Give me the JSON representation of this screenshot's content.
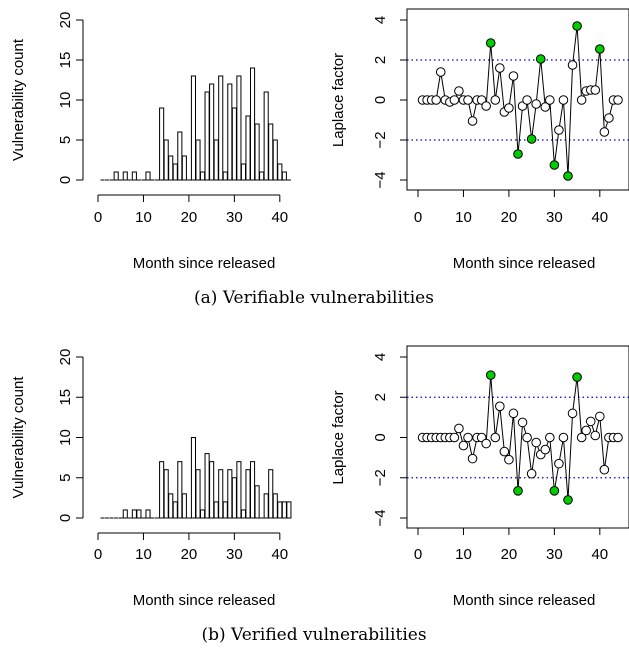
{
  "figure": {
    "caption_a": "(a) Verifiable vulnerabilities",
    "caption_b": "(b) Verified vulnerabilities"
  },
  "chart_data": [
    {
      "type": "bar",
      "xlabel": "Month since released",
      "ylabel": "Vulnerability count",
      "xlim": [
        0,
        44
      ],
      "ylim": [
        0,
        20
      ],
      "xticks": [
        0,
        10,
        20,
        30,
        40
      ],
      "yticks": [
        0,
        5,
        10,
        15,
        20
      ],
      "x": [
        1,
        2,
        3,
        4,
        5,
        6,
        7,
        8,
        9,
        10,
        11,
        12,
        13,
        14,
        15,
        16,
        17,
        18,
        19,
        20,
        21,
        22,
        23,
        24,
        25,
        26,
        27,
        28,
        29,
        30,
        31,
        32,
        33,
        34,
        35,
        36,
        37,
        38,
        39,
        40,
        41,
        42
      ],
      "values": [
        0,
        0,
        0,
        1,
        0,
        1,
        0,
        1,
        0,
        0,
        1,
        0,
        0,
        9,
        5,
        3,
        2,
        6,
        3,
        0,
        13,
        5,
        1,
        11,
        12,
        5,
        13,
        1,
        12,
        9,
        13,
        2,
        8,
        14,
        7,
        1,
        11,
        7,
        5,
        2,
        1,
        0
      ]
    },
    {
      "type": "line",
      "xlabel": "Month since released",
      "ylabel": "Laplace factor",
      "xlim": [
        0,
        44
      ],
      "ylim": [
        -4,
        4
      ],
      "xticks": [
        0,
        10,
        20,
        30,
        40
      ],
      "yticks": [
        -4,
        -2,
        0,
        2,
        4
      ],
      "reference_lines": [
        2,
        -2
      ],
      "x": [
        1,
        2,
        3,
        4,
        5,
        6,
        7,
        8,
        9,
        10,
        11,
        12,
        13,
        14,
        15,
        16,
        17,
        18,
        19,
        20,
        21,
        22,
        23,
        24,
        25,
        26,
        27,
        28,
        29,
        30,
        31,
        32,
        33,
        34,
        35,
        36,
        37,
        38,
        39,
        40,
        41,
        42,
        43,
        44
      ],
      "y": [
        0,
        0,
        0,
        0,
        1.4,
        0,
        -0.1,
        0,
        0.45,
        0,
        0,
        -1.05,
        0,
        0,
        -0.3,
        2.85,
        0,
        1.6,
        -0.6,
        -0.4,
        1.2,
        -2.7,
        -0.3,
        0,
        -1.95,
        -0.2,
        2.05,
        -0.35,
        0,
        -3.25,
        -1.5,
        0,
        -3.8,
        1.75,
        3.7,
        0,
        0.45,
        0.5,
        0.5,
        2.55,
        -1.6,
        -0.9,
        0,
        0
      ],
      "highlighted_x": [
        16,
        22,
        25,
        27,
        30,
        33,
        35,
        40
      ],
      "highlight_color": "#00cc00"
    },
    {
      "type": "bar",
      "xlabel": "Month since released",
      "ylabel": "Vulnerability count",
      "xlim": [
        0,
        44
      ],
      "ylim": [
        0,
        20
      ],
      "xticks": [
        0,
        10,
        20,
        30,
        40
      ],
      "yticks": [
        0,
        5,
        10,
        15,
        20
      ],
      "x": [
        1,
        2,
        3,
        4,
        5,
        6,
        7,
        8,
        9,
        10,
        11,
        12,
        13,
        14,
        15,
        16,
        17,
        18,
        19,
        20,
        21,
        22,
        23,
        24,
        25,
        26,
        27,
        28,
        29,
        30,
        31,
        32,
        33,
        34,
        35,
        36,
        37,
        38,
        39,
        40,
        41,
        42
      ],
      "values": [
        0,
        0,
        0,
        0,
        0,
        1,
        0,
        1,
        1,
        0,
        1,
        0,
        0,
        7,
        6,
        3,
        2,
        7,
        3,
        0,
        10,
        6,
        1,
        8,
        7,
        2,
        6,
        2,
        6,
        5,
        7,
        1,
        6,
        7,
        4,
        0,
        3,
        6,
        3,
        2,
        2,
        2
      ]
    },
    {
      "type": "line",
      "xlabel": "Month since released",
      "ylabel": "Laplace factor",
      "xlim": [
        0,
        44
      ],
      "ylim": [
        -4,
        4
      ],
      "xticks": [
        0,
        10,
        20,
        30,
        40
      ],
      "yticks": [
        -4,
        -2,
        0,
        2,
        4
      ],
      "reference_lines": [
        2,
        -2
      ],
      "x": [
        1,
        2,
        3,
        4,
        5,
        6,
        7,
        8,
        9,
        10,
        11,
        12,
        13,
        14,
        15,
        16,
        17,
        18,
        19,
        20,
        21,
        22,
        23,
        24,
        25,
        26,
        27,
        28,
        29,
        30,
        31,
        32,
        33,
        34,
        35,
        36,
        37,
        38,
        39,
        40,
        41,
        42,
        43,
        44
      ],
      "y": [
        0,
        0,
        0,
        0,
        0,
        0,
        0,
        0,
        0.45,
        -0.4,
        0,
        -1.05,
        0,
        0,
        -0.3,
        3.1,
        0,
        1.55,
        -0.7,
        -1.1,
        1.2,
        -2.65,
        0.75,
        0,
        -1.8,
        -0.25,
        -0.85,
        -0.6,
        0,
        -2.65,
        -1.3,
        0,
        -3.1,
        1.2,
        3.0,
        0,
        0.35,
        0.8,
        0.1,
        1.05,
        -1.6,
        0,
        0,
        0
      ],
      "highlighted_x": [
        16,
        22,
        30,
        33,
        35
      ],
      "highlight_color": "#00cc00"
    }
  ]
}
